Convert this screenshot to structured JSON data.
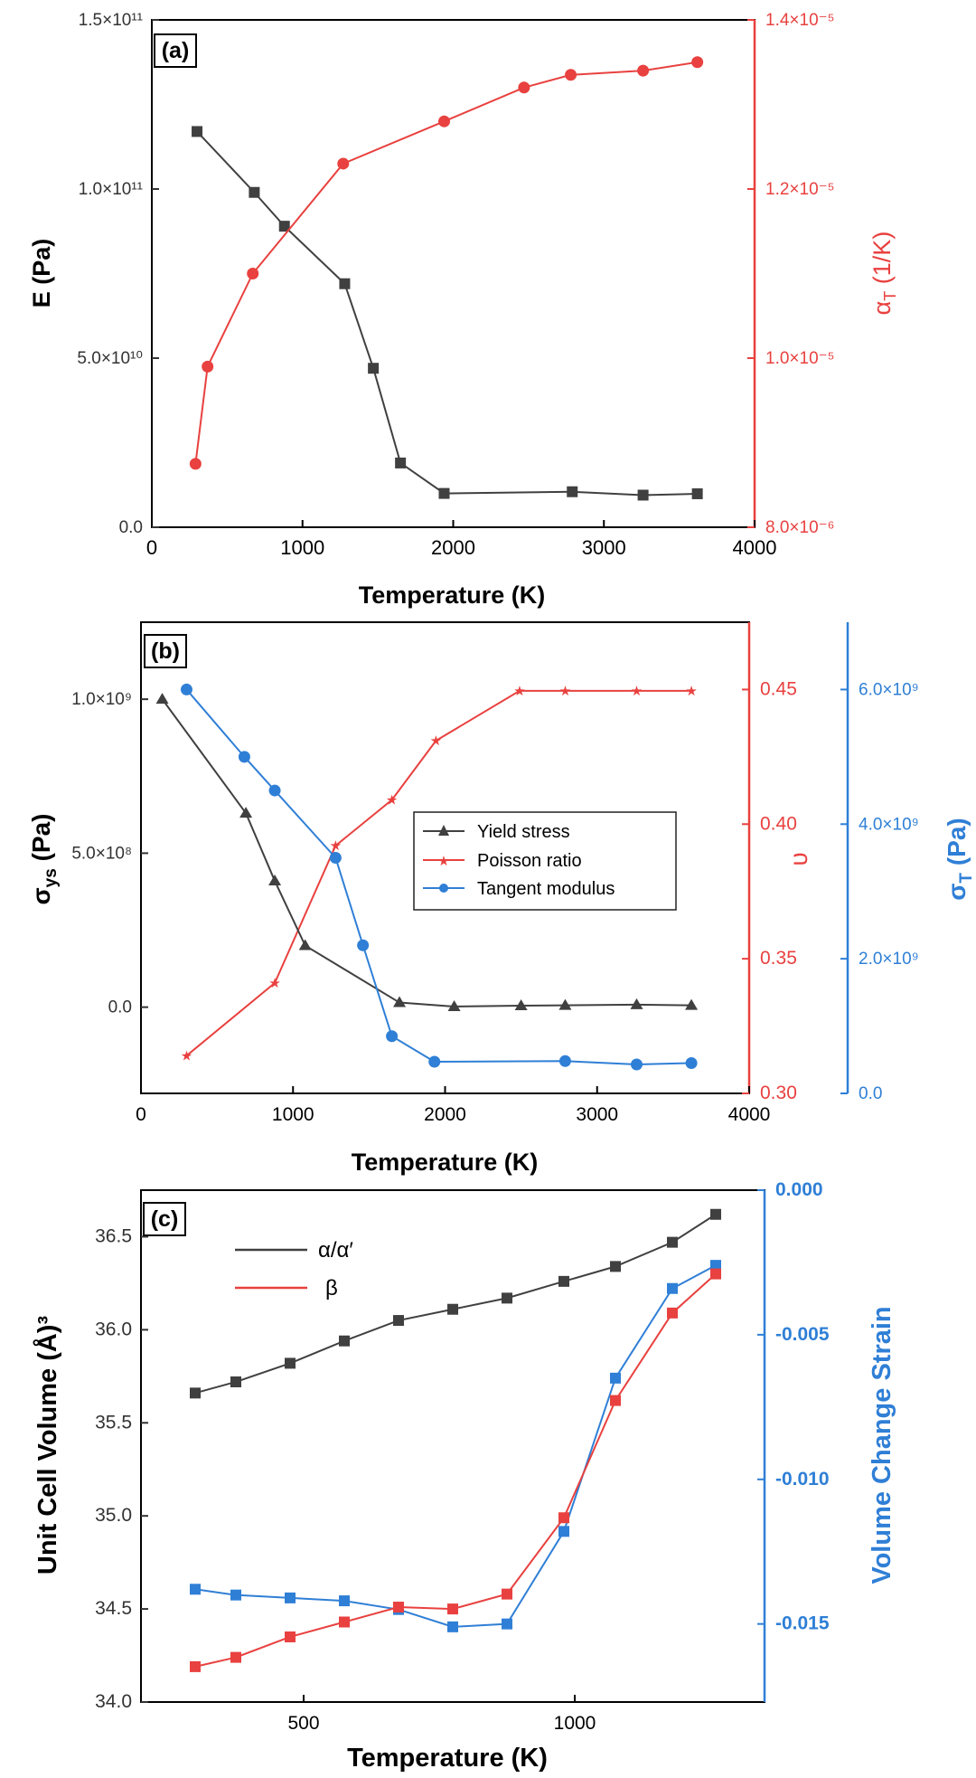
{
  "chart_data": [
    {
      "panel": "(a)",
      "type": "line",
      "xlabel": "Temperature (K)",
      "xlim": [
        0,
        4000
      ],
      "xticks": [
        "0",
        "1000",
        "2000",
        "3000",
        "4000"
      ],
      "ylabel_left": "E (Pa)",
      "ylabel_right": "αT (1/K)",
      "yticks_left": [
        "0.0",
        "5.0×10¹⁰",
        "1.0×10¹¹",
        "1.5×10¹¹"
      ],
      "yticks_right": [
        "8.0×10⁻⁶",
        "1.0×10⁻⁵",
        "1.2×10⁻⁵",
        "1.4×10⁻⁵"
      ],
      "ylim_left": [
        0,
        150000000000.0
      ],
      "ylim_right": [
        8e-06,
        1.4e-05
      ],
      "colors": {
        "E": "#404040",
        "alpha": "#e8413f"
      },
      "series": [
        {
          "axis": "left",
          "marker": "square",
          "x": [
            300,
            680,
            880,
            1280,
            1470,
            1650,
            1940,
            2790,
            3260,
            3620
          ],
          "y": [
            117000000000.0,
            99000000000.0,
            89000000000.0,
            72000000000.0,
            47000000000.0,
            19000000000.0,
            10000000000.0,
            10500000000.0,
            9500000000.0,
            9900000000.0
          ]
        },
        {
          "axis": "right",
          "marker": "circle",
          "x": [
            290,
            370,
            670,
            1270,
            1940,
            2470,
            2780,
            3260,
            3620
          ],
          "y": [
            8.75e-06,
            9.9e-06,
            1.1e-05,
            1.23e-05,
            1.28e-05,
            1.32e-05,
            1.335e-05,
            1.34e-05,
            1.35e-05
          ]
        }
      ]
    },
    {
      "panel": "(b)",
      "type": "line",
      "xlabel": "Temperature (K)",
      "xlim": [
        0,
        4000
      ],
      "xticks": [
        "0",
        "1000",
        "2000",
        "3000",
        "4000"
      ],
      "ylabel_left": "σys (Pa)",
      "ylabel_right1": "υ",
      "ylabel_right2": "σT (Pa)",
      "yticks_left": [
        "0.0",
        "5.0×10⁸",
        "1.0×10⁹"
      ],
      "yticks_right1": [
        "0.30",
        "0.35",
        "0.40",
        "0.45"
      ],
      "yticks_right2": [
        "0.0",
        "2.0×10⁹",
        "4.0×10⁹",
        "6.0×10⁹"
      ],
      "ylim_left": [
        -280000000.0,
        1250000000.0
      ],
      "ylim_right1": [
        0.3,
        0.475
      ],
      "ylim_right2": [
        0,
        7000000000.0
      ],
      "colors": {
        "yield": "#404040",
        "poisson": "#e8413f",
        "tangent": "#2f7fd6"
      },
      "legend_placement": "center",
      "series": [
        {
          "name": "Yield stress",
          "axis": "left",
          "marker": "triangle",
          "x": [
            140,
            690,
            880,
            1080,
            1700,
            2060,
            2500,
            2790,
            3260,
            3620
          ],
          "y": [
            1000000000.0,
            630000000.0,
            410000000.0,
            200000000.0,
            15000000.0,
            2000000.0,
            5000000.0,
            6000000.0,
            8000000.0,
            6000000.0
          ]
        },
        {
          "name": "Poisson ratio",
          "axis": "right1",
          "marker": "star",
          "x": [
            300,
            880,
            1280,
            1650,
            1940,
            2490,
            2790,
            3260,
            3620
          ],
          "y": [
            0.314,
            0.341,
            0.392,
            0.409,
            0.431,
            0.4495,
            0.4495,
            0.4495,
            0.4495
          ]
        },
        {
          "name": "Tangent modulus",
          "axis": "right2",
          "marker": "circle",
          "x": [
            300,
            680,
            880,
            1280,
            1460,
            1650,
            1930,
            2790,
            3260,
            3620
          ],
          "y": [
            6000000000.0,
            5000000000.0,
            4500000000.0,
            3500000000.0,
            2200000000.0,
            850000000.0,
            470000000.0,
            480000000.0,
            430000000.0,
            450000000.0
          ]
        }
      ]
    },
    {
      "panel": "(c)",
      "type": "line",
      "xlabel": "Temperature (K)",
      "xlim": [
        200,
        1350
      ],
      "xticks": [
        "500",
        "1000"
      ],
      "ylabel_left": "Unit Cell Volume (Å)³",
      "ylabel_right": "Volume Change Strain",
      "yticks_left": [
        "34.0",
        "34.5",
        "35.0",
        "35.5",
        "36.0",
        "36.5"
      ],
      "yticks_right": [
        "0.000",
        "-0.005",
        "-0.010",
        "-0.015"
      ],
      "ylim_left": [
        34.0,
        36.75
      ],
      "ylim_right": [
        -0.0177,
        0.0
      ],
      "colors": {
        "alpha": "#404040",
        "beta": "#e8413f",
        "strain": "#2f7fd6"
      },
      "legend_placement": "top-left",
      "series": [
        {
          "name": "α/α′",
          "axis": "left",
          "marker": "square",
          "x": [
            300,
            375,
            475,
            575,
            675,
            775,
            875,
            980,
            1075,
            1180,
            1260
          ],
          "y": [
            35.66,
            35.72,
            35.82,
            35.94,
            36.05,
            36.11,
            36.17,
            36.26,
            36.34,
            36.47,
            36.62
          ]
        },
        {
          "name": "β",
          "axis": "left",
          "marker": "square",
          "x": [
            300,
            375,
            475,
            575,
            675,
            775,
            875,
            980,
            1075,
            1180,
            1260
          ],
          "y": [
            34.19,
            34.24,
            34.35,
            34.43,
            34.51,
            34.5,
            34.58,
            34.99,
            35.62,
            36.09,
            36.3
          ]
        },
        {
          "axis": "right",
          "marker": "square",
          "x": [
            300,
            375,
            475,
            575,
            675,
            775,
            875,
            980,
            1075,
            1180,
            1260
          ],
          "y": [
            -0.0138,
            -0.014,
            -0.0141,
            -0.0142,
            -0.0145,
            -0.0151,
            -0.015,
            -0.0118,
            -0.0065,
            -0.0034,
            -0.0026
          ]
        }
      ]
    }
  ]
}
